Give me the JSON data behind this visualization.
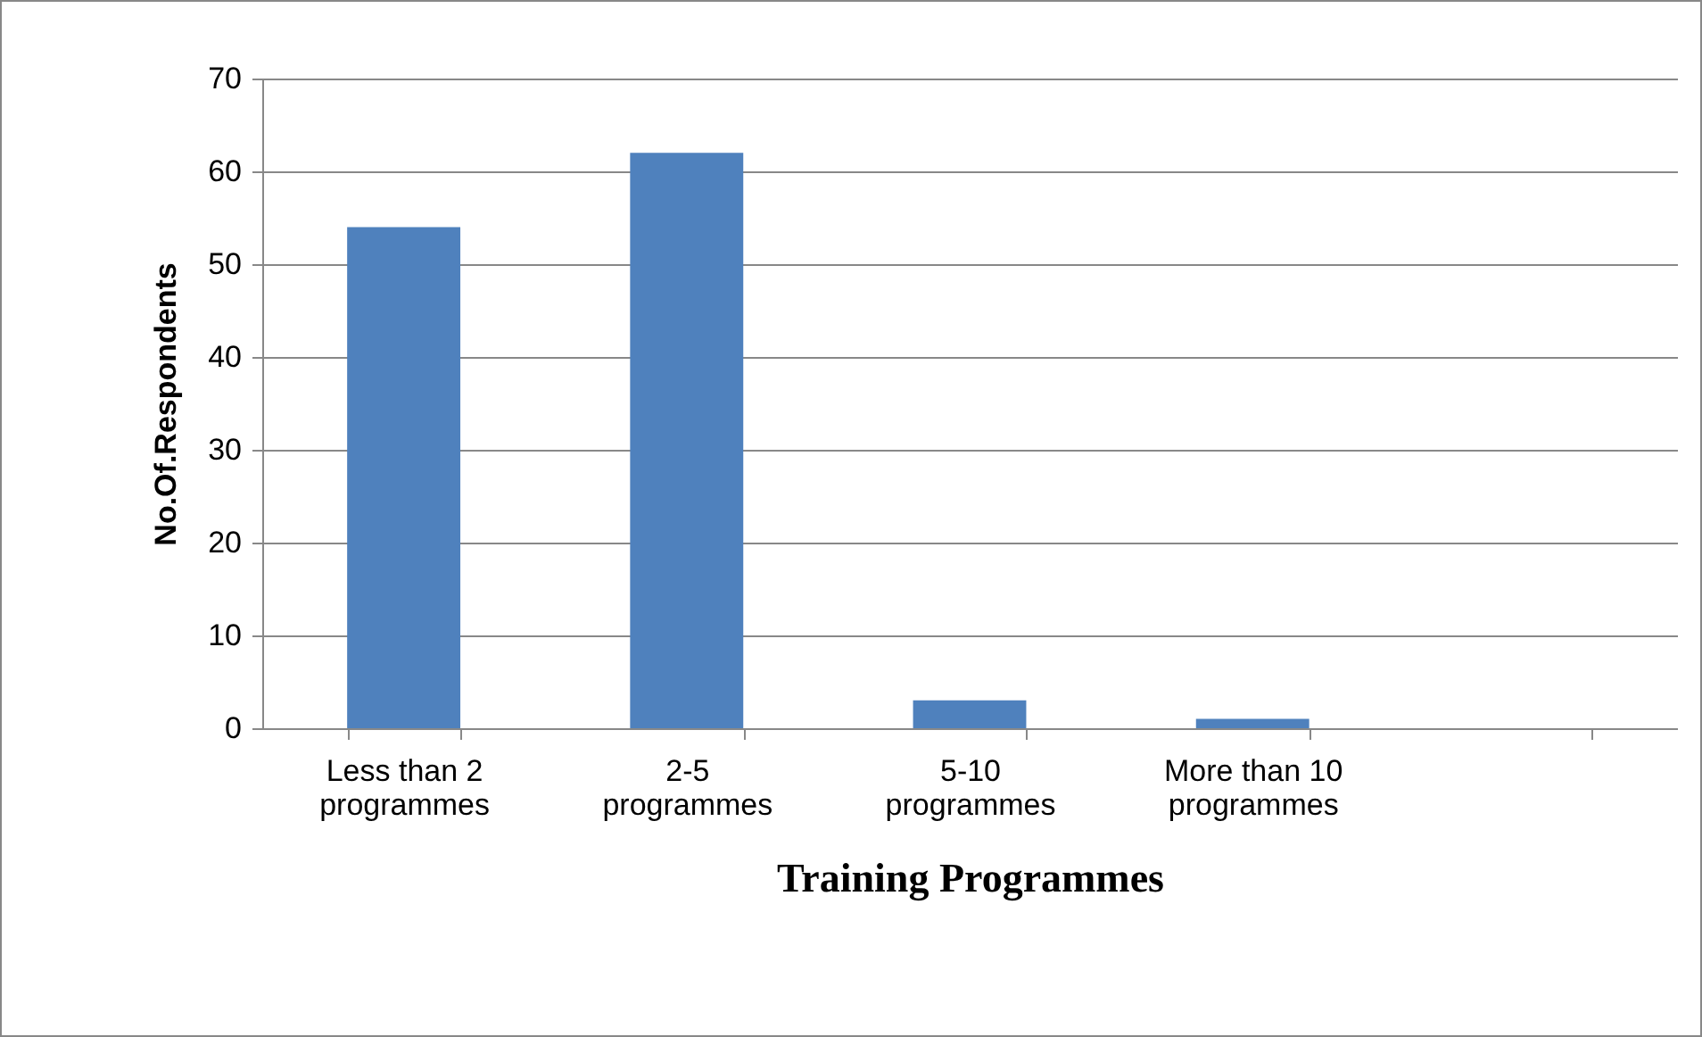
{
  "chart_data": {
    "type": "bar",
    "xlabel": "Training Programmes",
    "ylabel": "No.Of.Respondents",
    "categories": [
      "Less than 2 programmes",
      "2-5 programmes",
      "5-10 programmes",
      "More than 10 programmes",
      null
    ],
    "values": [
      54,
      62,
      3,
      1,
      null
    ],
    "color": "#4f81bd",
    "ylim": [
      0,
      70
    ],
    "yticks": [
      0,
      10,
      20,
      30,
      40,
      50,
      60,
      70
    ],
    "grid": "y"
  }
}
